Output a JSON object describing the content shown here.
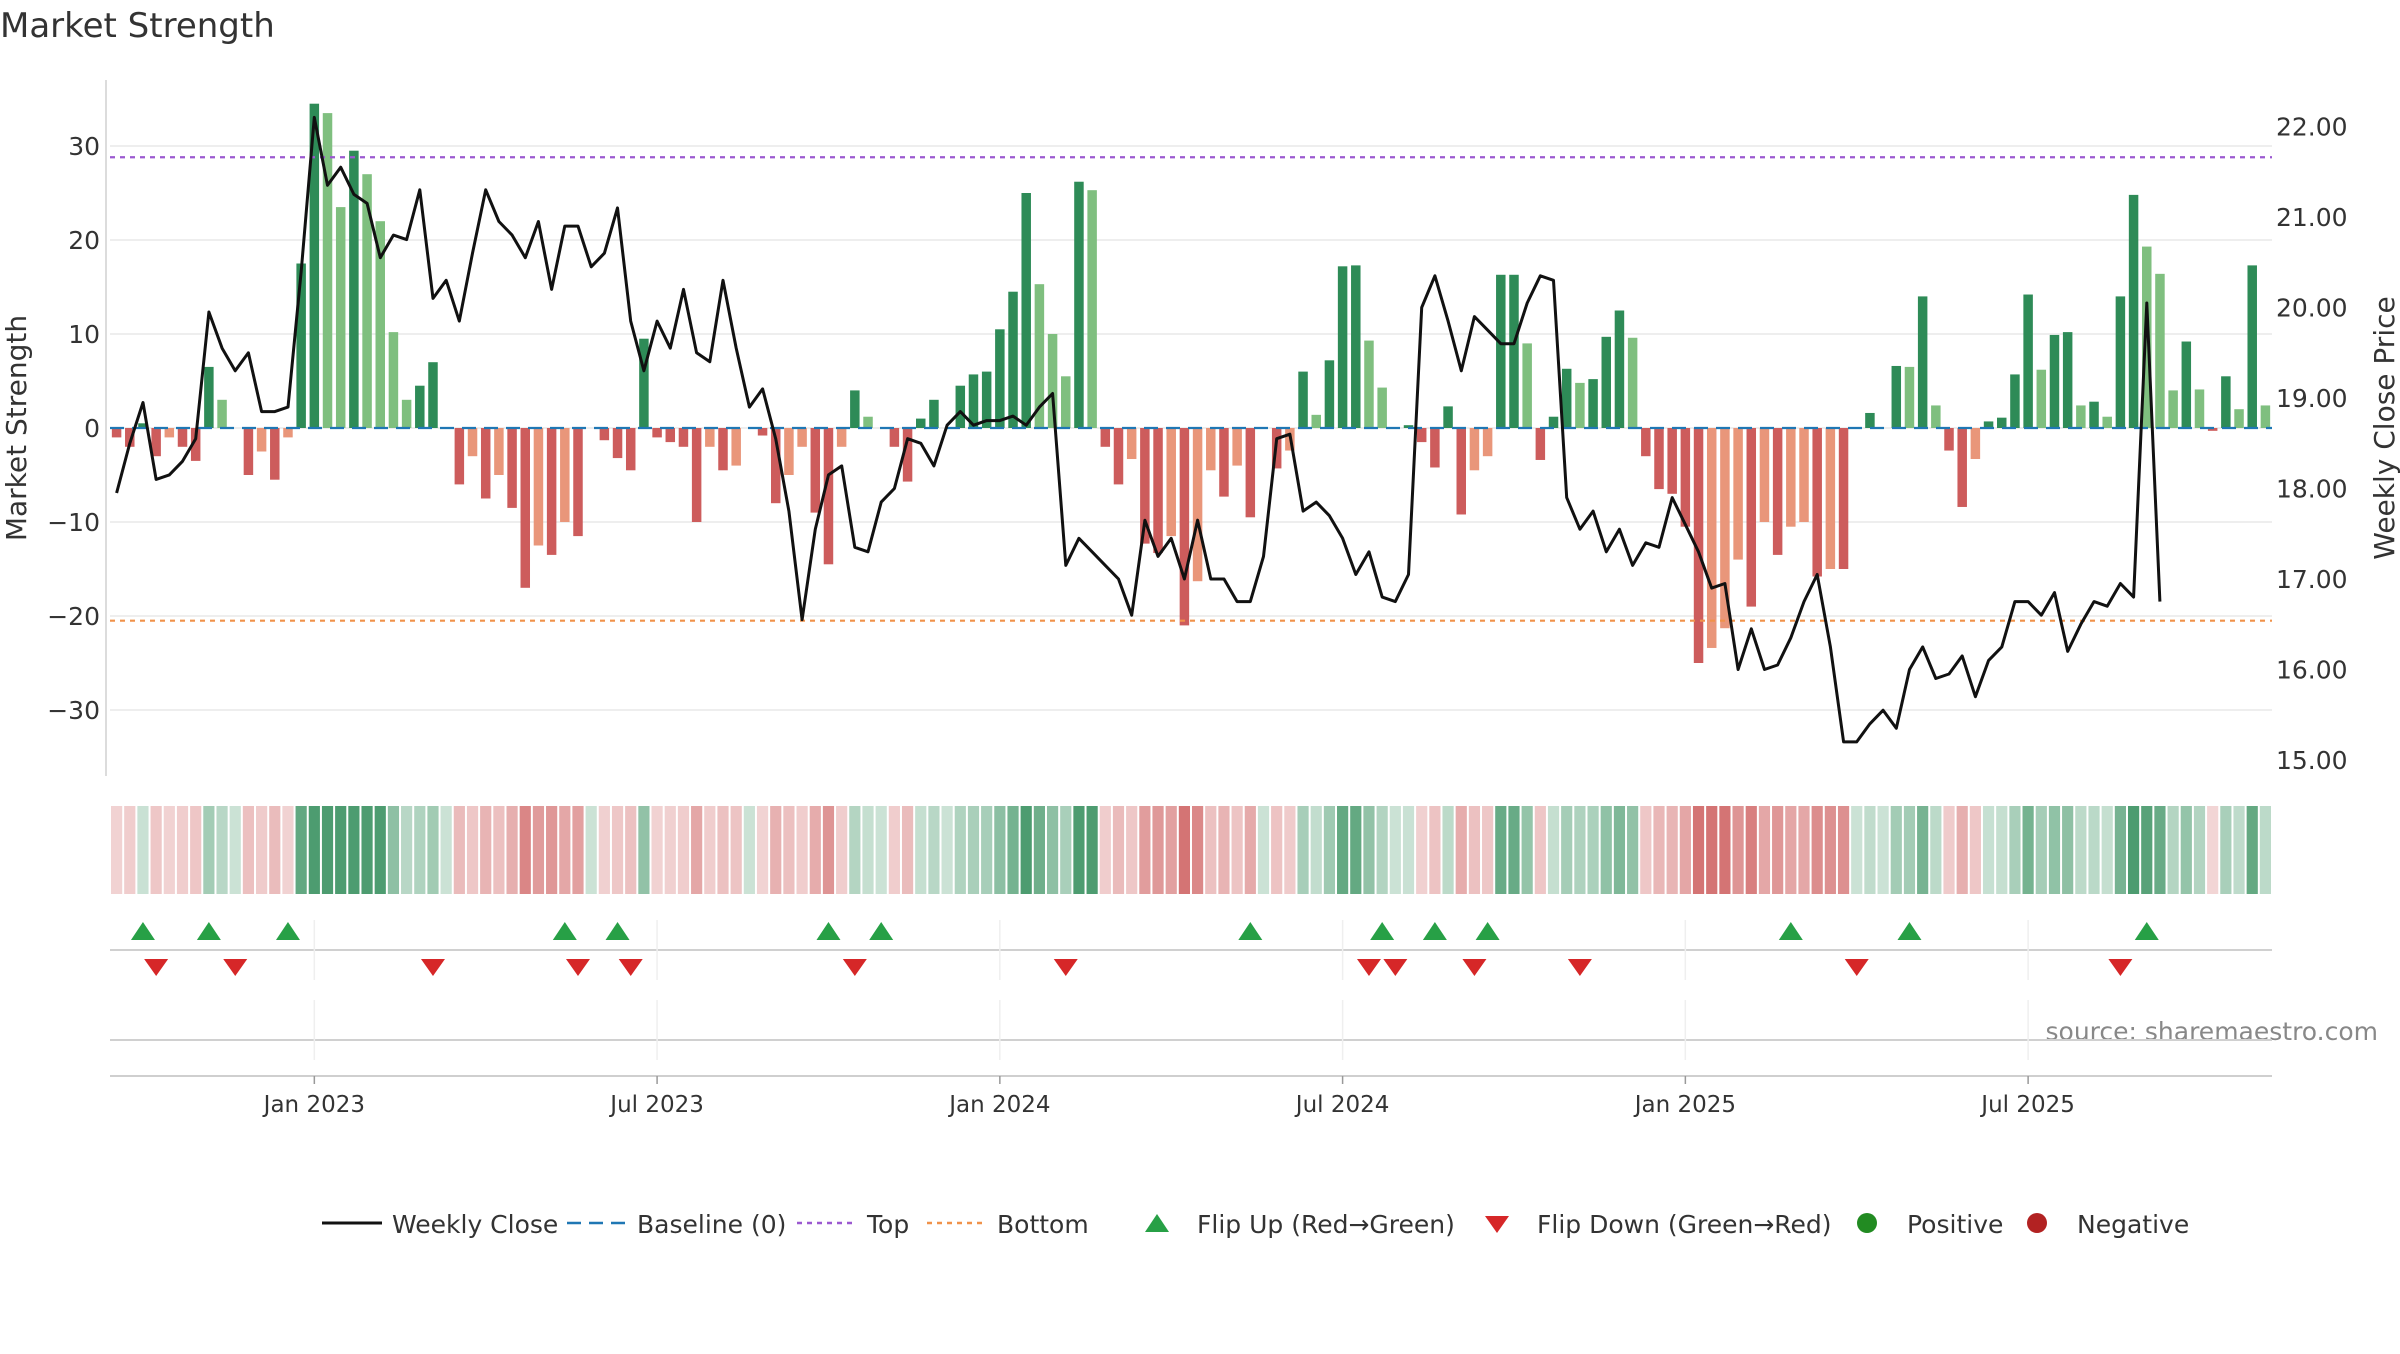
{
  "chart_data": {
    "type": "bar",
    "title": "Market Strength",
    "ylabel_left": "Market Strength",
    "ylabel_right": "Weekly Close Price",
    "source": "source: sharemaestro.com",
    "ylim_left": [
      -37,
      37
    ],
    "ylim_right": [
      15.0,
      22.6
    ],
    "yticks_left": [
      30,
      20,
      10,
      0,
      -10,
      -20,
      -30
    ],
    "yticks_left_labels": [
      "30",
      "20",
      "10",
      "0",
      "−10",
      "−20",
      "−30"
    ],
    "yticks_right": [
      22,
      21,
      20,
      19,
      18,
      17,
      16,
      15
    ],
    "yticks_right_labels": [
      "22.00",
      "21.00",
      "20.00",
      "19.00",
      "18.00",
      "17.00",
      "16.00",
      "15.00"
    ],
    "xticks": [
      {
        "label": "Jan 2023",
        "week": 15
      },
      {
        "label": "Jul 2023",
        "week": 41
      },
      {
        "label": "Jan 2024",
        "week": 67
      },
      {
        "label": "Jul 2024",
        "week": 93
      },
      {
        "label": "Jan 2025",
        "week": 119
      },
      {
        "label": "Jul 2025",
        "week": 145
      }
    ],
    "top_line": 28.8,
    "bottom_line": -20.5,
    "strength": [
      -1,
      -2,
      0.5,
      -3,
      -1,
      -2,
      -3.5,
      6.5,
      3,
      0,
      -5,
      -2.5,
      -5.5,
      -1,
      17.5,
      34.5,
      33.5,
      23.5,
      29.5,
      27,
      22,
      10.2,
      3,
      4.5,
      7,
      0,
      -6,
      -3,
      -7.5,
      -5,
      -8.5,
      -17,
      -12.5,
      -13.5,
      -10,
      -11.5,
      0,
      -1.3,
      -3.2,
      -4.5,
      9.5,
      -1,
      -1.5,
      -2,
      -10,
      -2,
      -4.5,
      -4,
      0,
      -0.8,
      -8,
      -5,
      -2,
      -9,
      -14.5,
      -2,
      4,
      1.2,
      0,
      -2,
      -5.7,
      1,
      3,
      0,
      4.5,
      5.7,
      6,
      10.5,
      14.5,
      25,
      15.3,
      10,
      5.5,
      26.2,
      25.3,
      -2,
      -6,
      -3.3,
      -12.3,
      -13.3,
      -11.5,
      -21,
      -16.3,
      -4.5,
      -7.3,
      -4,
      -9.5,
      0,
      -4.3,
      -2.4,
      6,
      1.4,
      7.2,
      17.2,
      17.3,
      9.3,
      4.3,
      0,
      0.3,
      -1.5,
      -4.2,
      2.3,
      -9.2,
      -4.5,
      -3,
      16.3,
      16.3,
      9,
      -3.4,
      1.2,
      6.3,
      4.8,
      5.2,
      9.7,
      12.5,
      9.6,
      -3,
      -6.5,
      -7,
      -10.5,
      -25,
      -23.4,
      -21.3,
      -14,
      -19,
      -10,
      -13.5,
      -10.5,
      -10,
      -15.8,
      -15,
      -15,
      0,
      1.6,
      0,
      6.6,
      6.5,
      14,
      2.4,
      -2.4,
      -8.4,
      -3.3,
      0.7,
      1.1,
      5.7,
      14.2,
      6.2,
      9.9,
      10.2,
      2.4,
      2.8,
      1.2,
      14,
      24.8,
      19.3,
      16.4,
      4,
      9.2,
      4.1,
      -0.3,
      5.5,
      2,
      17.3,
      2.4
    ],
    "price": [
      17.95,
      18.5,
      18.95,
      18.1,
      18.15,
      18.3,
      18.55,
      19.95,
      19.55,
      19.3,
      19.5,
      18.85,
      18.85,
      18.9,
      20.4,
      22.1,
      21.35,
      21.55,
      21.25,
      21.15,
      20.55,
      20.8,
      20.75,
      21.3,
      20.1,
      20.3,
      19.85,
      20.6,
      21.3,
      20.95,
      20.8,
      20.55,
      20.95,
      20.2,
      20.9,
      20.9,
      20.45,
      20.6,
      21.1,
      19.85,
      19.3,
      19.85,
      19.55,
      20.2,
      19.5,
      19.4,
      20.3,
      19.55,
      18.9,
      19.1,
      18.55,
      17.75,
      16.55,
      17.55,
      18.15,
      18.25,
      17.35,
      17.3,
      17.85,
      18.0,
      18.55,
      18.5,
      18.25,
      18.7,
      18.85,
      18.7,
      18.75,
      18.75,
      18.8,
      18.7,
      18.9,
      19.05,
      17.15,
      17.45,
      17.3,
      17.15,
      17.0,
      16.6,
      17.65,
      17.25,
      17.45,
      17.0,
      17.65,
      17.0,
      17.0,
      16.75,
      16.75,
      17.25,
      18.55,
      18.6,
      17.75,
      17.85,
      17.7,
      17.45,
      17.05,
      17.3,
      16.8,
      16.75,
      17.05,
      20.0,
      20.35,
      19.85,
      19.3,
      19.9,
      19.75,
      19.6,
      19.6,
      20.05,
      20.35,
      20.3,
      17.9,
      17.55,
      17.75,
      17.3,
      17.55,
      17.15,
      17.4,
      17.35,
      17.9,
      17.6,
      17.3,
      16.9,
      16.95,
      16.0,
      16.45,
      16.0,
      16.05,
      16.35,
      16.75,
      17.05,
      16.25,
      15.2,
      15.2,
      15.4,
      15.55,
      15.35,
      16.0,
      16.25,
      15.9,
      15.95,
      16.15,
      15.7,
      16.1,
      16.25,
      16.75,
      16.75,
      16.6,
      16.85,
      16.2,
      16.5,
      16.75,
      16.7,
      16.95,
      16.8,
      20.05,
      16.75
    ]
  },
  "heat_strip": {
    "label": "Weekly strength heat strip"
  },
  "flip_up_weeks": [
    2,
    7,
    13,
    34,
    38,
    54,
    58,
    86,
    96,
    100,
    104,
    127,
    136,
    154
  ],
  "flip_down_weeks": [
    3,
    9,
    24,
    35,
    39,
    56,
    72,
    95,
    97,
    103,
    111,
    132,
    152
  ],
  "legend": [
    {
      "key": "weekly_close",
      "label": "Weekly Close",
      "color": "#111111"
    },
    {
      "key": "baseline",
      "label": "Baseline (0)",
      "color": "#1f77b4"
    },
    {
      "key": "top",
      "label": "Top",
      "color": "#9b59d0"
    },
    {
      "key": "bottom",
      "label": "Bottom",
      "color": "#f0924a"
    },
    {
      "key": "flip_up",
      "label": "Flip Up (Red→Green)",
      "color": "#27a046"
    },
    {
      "key": "flip_down",
      "label": "Flip Down (Green→Red)",
      "color": "#d62728"
    },
    {
      "key": "positive",
      "label": "Positive",
      "color": "#228b22"
    },
    {
      "key": "negative",
      "label": "Negative",
      "color": "#b22222"
    }
  ],
  "colors": {
    "pos_dark": "#2e8b57",
    "pos_light": "#7fbf7f",
    "neg_dark": "#cd5c5c",
    "neg_light": "#e9967a",
    "price_line": "#111111",
    "grid": "#e8e8e8"
  }
}
